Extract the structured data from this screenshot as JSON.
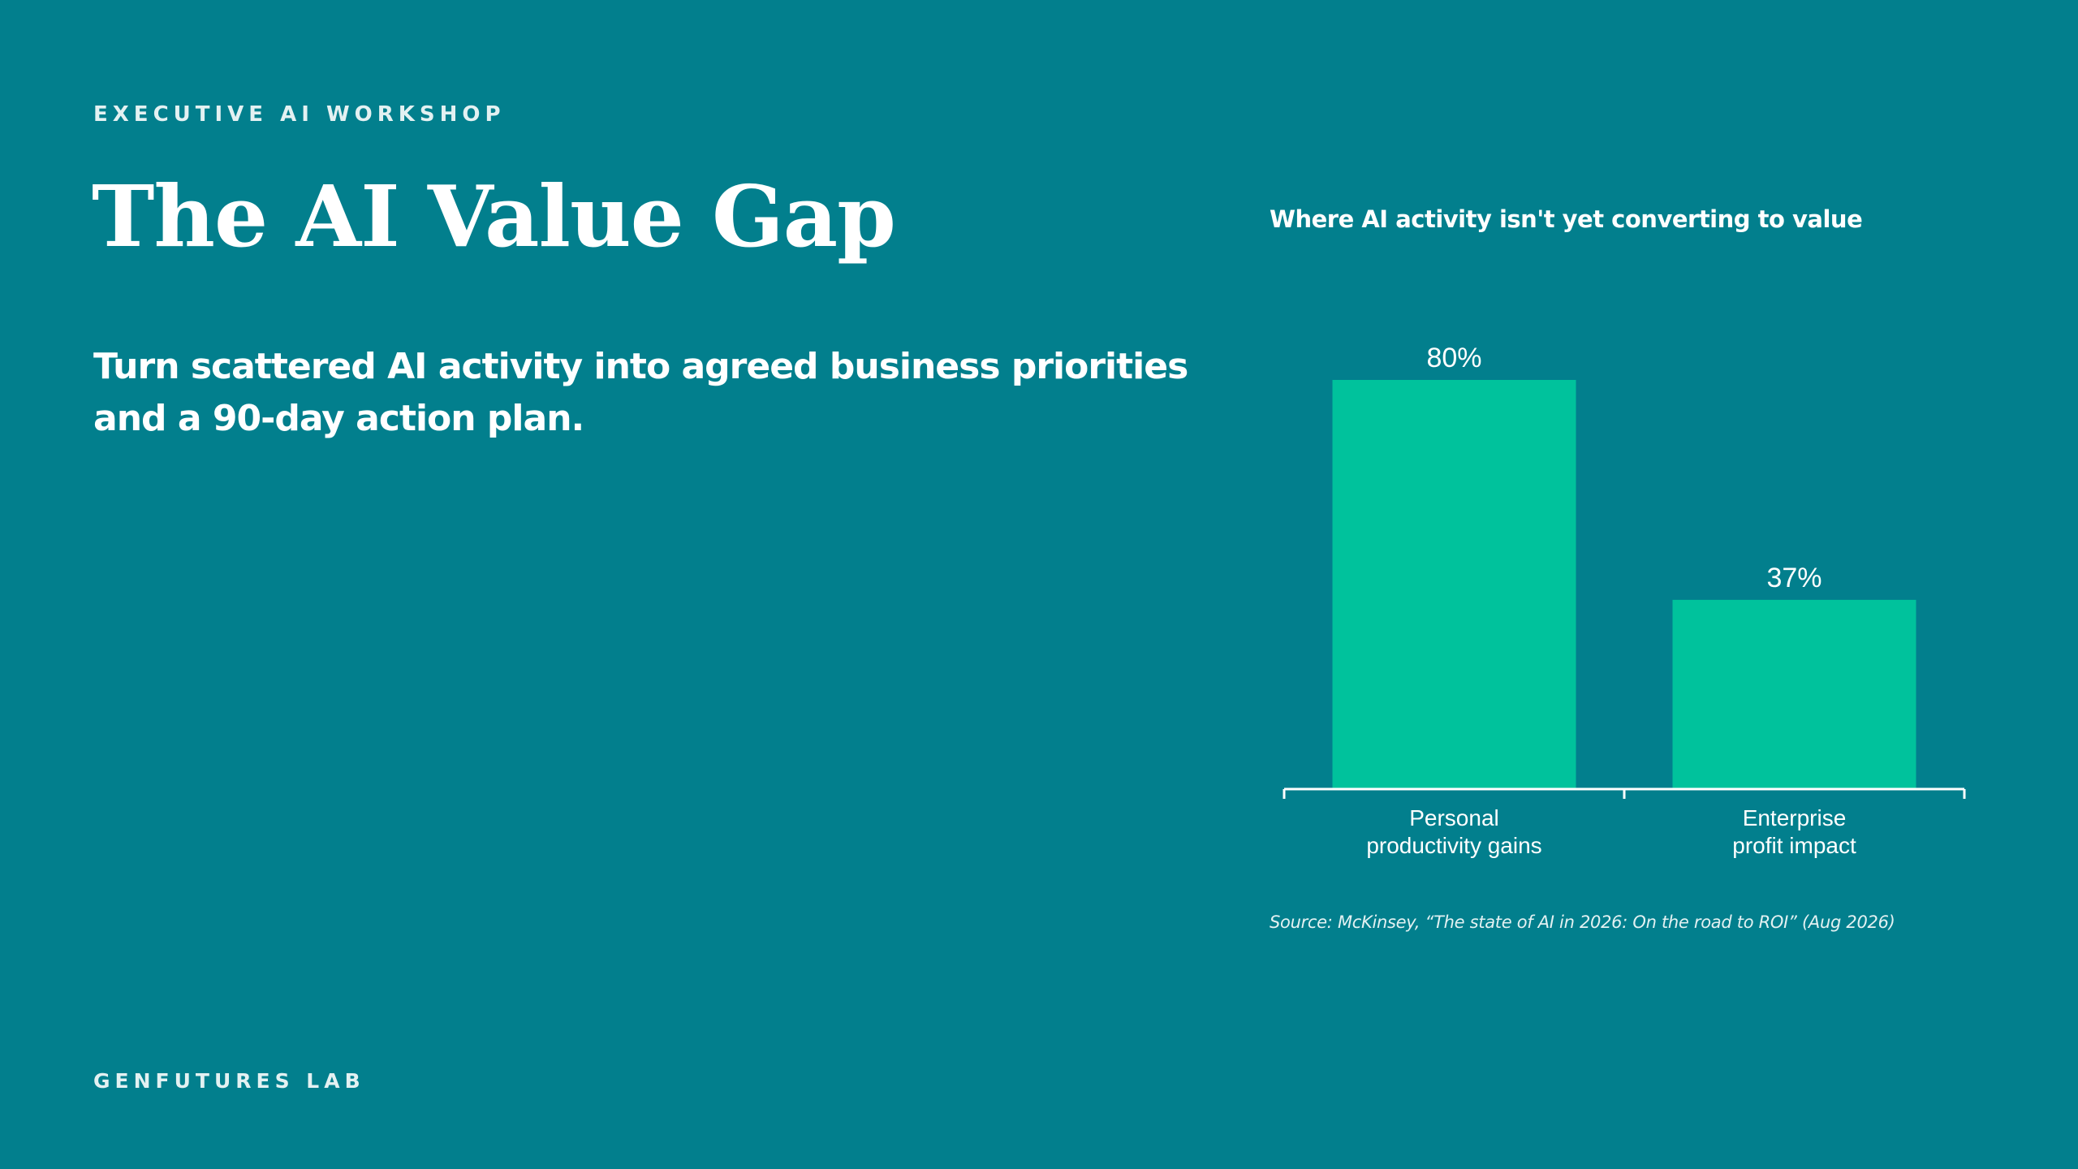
{
  "header": {
    "eyebrow": "EXECUTIVE AI WORKSHOP",
    "title": "The AI Value Gap",
    "subtitle": "Turn scattered AI activity into agreed business priorities and a 90-day action plan."
  },
  "footer": {
    "brand": "GENFUTURES LAB"
  },
  "chart_data": {
    "type": "bar",
    "title": "Where AI activity isn't yet converting to value",
    "categories": [
      [
        "Personal",
        "productivity gains"
      ],
      [
        "Enterprise",
        "profit impact"
      ]
    ],
    "values": [
      80,
      37
    ],
    "value_labels": [
      "80%",
      "37%"
    ],
    "ylim": [
      0,
      100
    ],
    "xlabel": "",
    "ylabel": "",
    "grid": false,
    "bar_color": "#00c29c",
    "axis_color": "#ffffff",
    "source": "Source: McKinsey, “The state of AI in 2026: On the road to ROI” (Aug 2026)"
  },
  "colors": {
    "background": "#027f8d",
    "text": "#ffffff",
    "accent": "#00c29c"
  }
}
